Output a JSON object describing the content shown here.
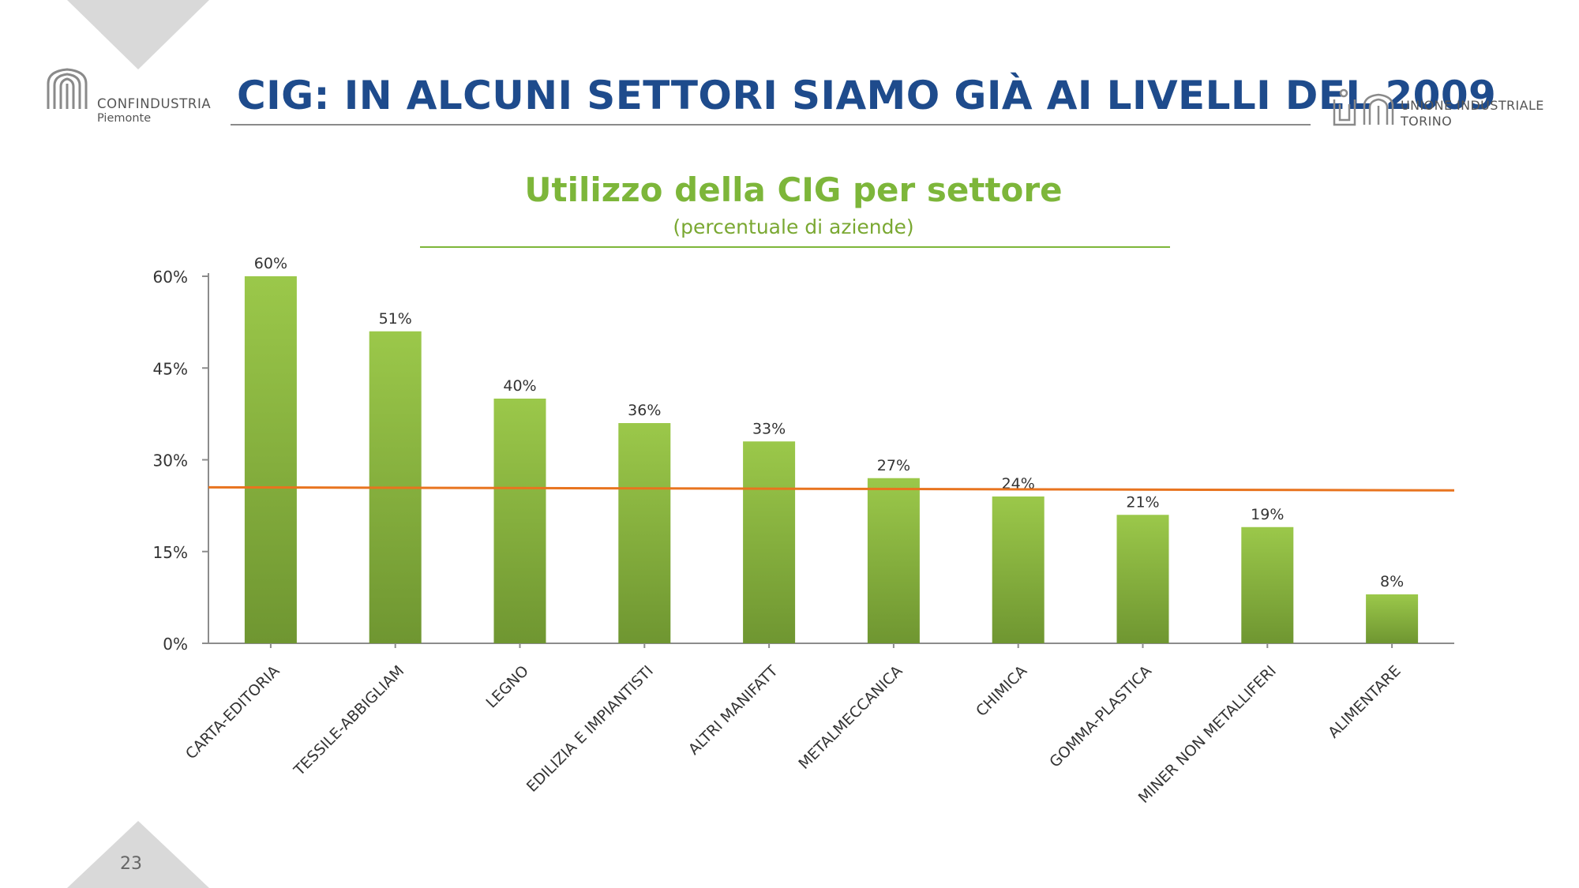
{
  "header": {
    "title": "CIG: IN ALCUNI SETTORI SIAMO GIÀ AI LIVELLI DEL 2009",
    "logo_left": {
      "brand": "CONFINDUSTRIA",
      "region": "Piemonte"
    },
    "logo_right": {
      "line1": "UNIONE INDUSTRIALE",
      "line2": "TORINO"
    }
  },
  "footer": {
    "page_number": "23"
  },
  "colors": {
    "title": "#1e4b8c",
    "chart_title": "#7db63a",
    "bar_top": "#9bc84a",
    "bar_bottom": "#6f9631",
    "average_line": "#e8741f",
    "corner_triangle": "#d9d9d9"
  },
  "chart_data": {
    "type": "bar",
    "title": "Utilizzo della CIG per settore",
    "subtitle": "(percentuale di aziende)",
    "categories": [
      "CARTA-EDITORIA",
      "TESSILE-ABBIGLIAM",
      "LEGNO",
      "EDILIZIA E IMPIANTISTI",
      "ALTRI MANIFATT",
      "METALMECCANICA",
      "CHIMICA",
      "GOMMA-PLASTICA",
      "MINER NON METALLIFERI",
      "ALIMENTARE"
    ],
    "values": [
      60,
      51,
      40,
      36,
      33,
      27,
      24,
      21,
      19,
      8
    ],
    "data_labels": [
      "60%",
      "51%",
      "40%",
      "36%",
      "33%",
      "27%",
      "24%",
      "21%",
      "19%",
      "8%"
    ],
    "y_ticks": [
      0,
      15,
      30,
      45,
      60
    ],
    "y_tick_labels": [
      "0%",
      "15%",
      "30%",
      "45%",
      "60%"
    ],
    "ylim": [
      0,
      60
    ],
    "reference_line": {
      "start": 25.5,
      "end": 25
    },
    "xlabel": "",
    "ylabel": "",
    "grid": false,
    "legend": "none"
  }
}
